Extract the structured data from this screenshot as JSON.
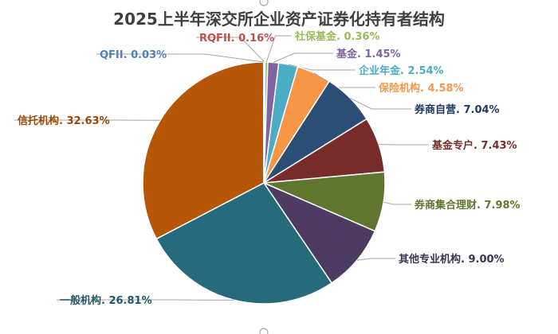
{
  "chart_data": {
    "type": "pie",
    "title": "2025上半年深交所企业资产证券化持有者结构",
    "slices": [
      {
        "label": "RQFII. 0.16%",
        "value": 0.16,
        "color": "#c0504d"
      },
      {
        "label": "社保基金. 0.36%",
        "value": 0.36,
        "color": "#9bbb59"
      },
      {
        "label": "基金. 1.45%",
        "value": 1.45,
        "color": "#8064a2"
      },
      {
        "label": "企业年金. 2.54%",
        "value": 2.54,
        "color": "#4bacc6"
      },
      {
        "label": "保险机构. 4.58%",
        "value": 4.58,
        "color": "#f79646"
      },
      {
        "label": "券商自营. 7.04%",
        "value": 7.04,
        "color": "#2c4d75"
      },
      {
        "label": "基金专户. 7.43%",
        "value": 7.43,
        "color": "#772c2a"
      },
      {
        "label": "券商集合理财. 7.98%",
        "value": 7.98,
        "color": "#5f7530"
      },
      {
        "label": "其他专业机构. 9.00%",
        "value": 9.0,
        "color": "#4d3b62"
      },
      {
        "label": "一般机构. 26.81%",
        "value": 26.81,
        "color": "#276a7c"
      },
      {
        "label": "信托机构. 32.63%",
        "value": 32.63,
        "color": "#b65708"
      },
      {
        "label": "QFII. 0.03%",
        "value": 0.03,
        "color": "#4f81bd"
      }
    ],
    "label_colors": [
      "#c0504d",
      "#9bbb59",
      "#8064a2",
      "#4bacc6",
      "#f79646",
      "#1f3864",
      "#772c2a",
      "#5f7530",
      "#3f3151",
      "#215868",
      "#984807",
      "#4f81bd"
    ],
    "legend": "none"
  }
}
